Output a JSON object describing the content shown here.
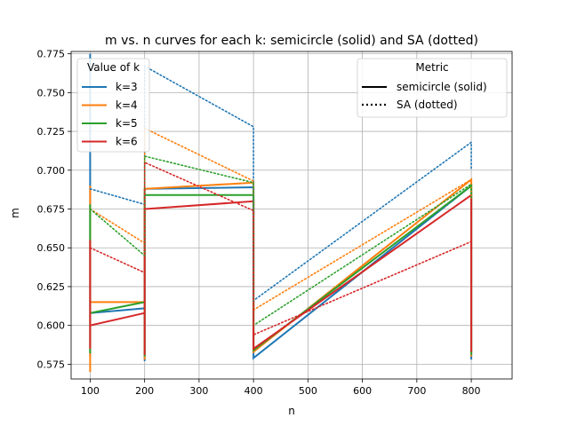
{
  "chart_data": {
    "type": "line",
    "title": "m vs. n curves for each k: semicircle (solid) and SA (dotted)",
    "xlabel": "n",
    "ylabel": "m",
    "xlim": [
      65,
      875
    ],
    "ylim": [
      0.5655,
      0.7765
    ],
    "xticks": [
      100,
      200,
      300,
      400,
      500,
      600,
      700,
      800
    ],
    "yticks": [
      0.575,
      0.6,
      0.625,
      0.65,
      0.675,
      0.7,
      0.725,
      0.75,
      0.775
    ],
    "grid": true,
    "series_colors": {
      "k=3": "#1f77b4",
      "k=4": "#ff7f0e",
      "k=5": "#2ca02c",
      "k=6": "#d62728"
    },
    "series": [
      {
        "k": "k=3",
        "metric": "semicircle",
        "style": "solid",
        "points": [
          [
            100,
            0.775
          ],
          [
            100,
            0.58
          ],
          [
            100,
            0.608
          ],
          [
            200,
            0.611
          ],
          [
            200,
            0.577
          ],
          [
            200,
            0.688
          ],
          [
            400,
            0.689
          ],
          [
            400,
            0.579
          ],
          [
            800,
            0.69
          ],
          [
            800,
            0.578
          ]
        ]
      },
      {
        "k": "k=4",
        "metric": "semicircle",
        "style": "solid",
        "points": [
          [
            100,
            0.69
          ],
          [
            100,
            0.57
          ],
          [
            100,
            0.615
          ],
          [
            200,
            0.615
          ],
          [
            200,
            0.578
          ],
          [
            200,
            0.688
          ],
          [
            400,
            0.692
          ],
          [
            400,
            0.583
          ],
          [
            800,
            0.694
          ],
          [
            800,
            0.58
          ]
        ]
      },
      {
        "k": "k=5",
        "metric": "semicircle",
        "style": "solid",
        "points": [
          [
            100,
            0.678
          ],
          [
            100,
            0.582
          ],
          [
            100,
            0.608
          ],
          [
            200,
            0.615
          ],
          [
            200,
            0.58
          ],
          [
            200,
            0.684
          ],
          [
            400,
            0.684
          ],
          [
            400,
            0.584
          ],
          [
            800,
            0.69
          ],
          [
            800,
            0.581
          ]
        ]
      },
      {
        "k": "k=6",
        "metric": "semicircle",
        "style": "solid",
        "points": [
          [
            100,
            0.655
          ],
          [
            100,
            0.585
          ],
          [
            100,
            0.6
          ],
          [
            200,
            0.608
          ],
          [
            200,
            0.581
          ],
          [
            200,
            0.675
          ],
          [
            400,
            0.68
          ],
          [
            400,
            0.585
          ],
          [
            800,
            0.684
          ],
          [
            800,
            0.583
          ]
        ]
      },
      {
        "k": "k=3",
        "metric": "SA",
        "style": "dotted",
        "points": [
          [
            100,
            0.688
          ],
          [
            200,
            0.678
          ],
          [
            200,
            0.767
          ],
          [
            400,
            0.728
          ],
          [
            400,
            0.616
          ],
          [
            800,
            0.718
          ],
          [
            800,
            0.7
          ]
        ]
      },
      {
        "k": "k=4",
        "metric": "SA",
        "style": "dotted",
        "points": [
          [
            100,
            0.675
          ],
          [
            200,
            0.653
          ],
          [
            200,
            0.727
          ],
          [
            400,
            0.693
          ],
          [
            400,
            0.61
          ],
          [
            800,
            0.694
          ],
          [
            800,
            0.682
          ]
        ]
      },
      {
        "k": "k=5",
        "metric": "SA",
        "style": "dotted",
        "points": [
          [
            100,
            0.675
          ],
          [
            200,
            0.645
          ],
          [
            200,
            0.709
          ],
          [
            400,
            0.692
          ],
          [
            400,
            0.6
          ],
          [
            800,
            0.691
          ],
          [
            800,
            0.681
          ]
        ]
      },
      {
        "k": "k=6",
        "metric": "SA",
        "style": "dotted",
        "points": [
          [
            100,
            0.65
          ],
          [
            200,
            0.634
          ],
          [
            200,
            0.705
          ],
          [
            400,
            0.674
          ],
          [
            400,
            0.594
          ],
          [
            800,
            0.654
          ],
          [
            800,
            0.65
          ]
        ]
      }
    ],
    "legend_k": {
      "title": "Value of k",
      "placement": "upper-left",
      "entries": [
        {
          "label": "k=3",
          "color": "#1f77b4"
        },
        {
          "label": "k=4",
          "color": "#ff7f0e"
        },
        {
          "label": "k=5",
          "color": "#2ca02c"
        },
        {
          "label": "k=6",
          "color": "#d62728"
        }
      ]
    },
    "legend_metric": {
      "title": "Metric",
      "placement": "upper-right",
      "entries": [
        {
          "label": "semicircle (solid)",
          "style": "solid"
        },
        {
          "label": "SA (dotted)",
          "style": "dotted"
        }
      ]
    }
  }
}
